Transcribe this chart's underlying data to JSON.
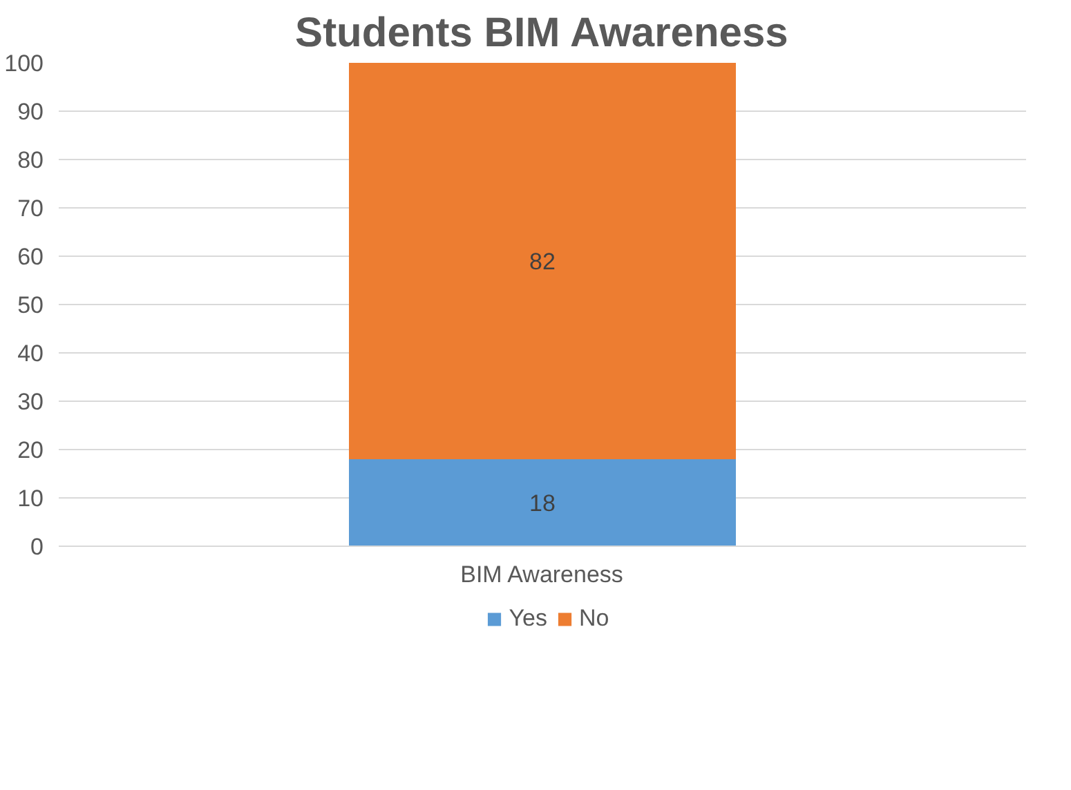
{
  "chart_data": {
    "type": "bar",
    "title": "Students BIM Awareness",
    "categories": [
      "BIM Awareness"
    ],
    "stacked": true,
    "series": [
      {
        "name": "Yes",
        "color": "#5b9bd5",
        "values": [
          18
        ]
      },
      {
        "name": "No",
        "color": "#ed7d31",
        "values": [
          82
        ]
      }
    ],
    "ylim": [
      0,
      100
    ],
    "yticks": [
      0,
      10,
      20,
      30,
      40,
      50,
      60,
      70,
      80,
      90,
      100
    ],
    "grid": "y",
    "legend": "bottom",
    "data_labels": true
  }
}
